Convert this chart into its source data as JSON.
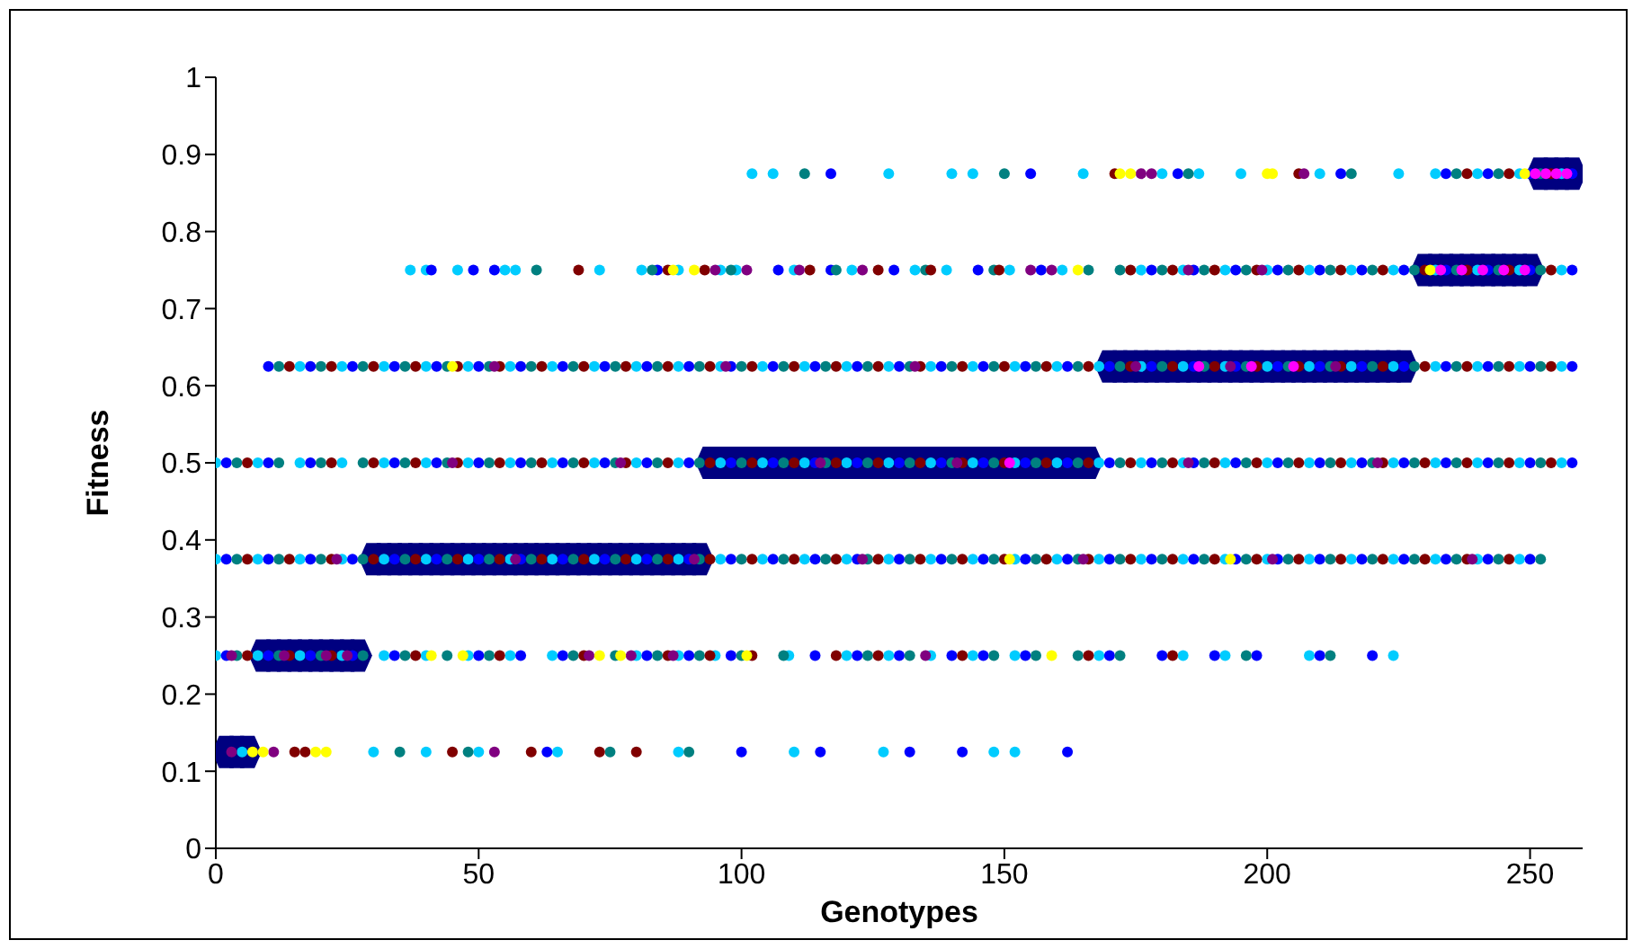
{
  "chart_data": {
    "type": "scatter",
    "xlabel": "Genotypes",
    "ylabel": "Fitness",
    "xlim": [
      0,
      260
    ],
    "xticks": [
      0,
      50,
      100,
      150,
      200,
      250
    ],
    "ylim": [
      0,
      1
    ],
    "yticks": [
      0,
      0.1,
      0.2,
      0.3,
      0.4,
      0.5,
      0.6,
      0.7,
      0.8,
      0.9,
      1
    ],
    "grid": false,
    "legend": false,
    "marker": "circle",
    "series": [
      {
        "color": "#000080",
        "marker": "square",
        "x": [
          2,
          4,
          6,
          9,
          11,
          13,
          15,
          17,
          19,
          21,
          23,
          25,
          27,
          30,
          32,
          34,
          36,
          38,
          40,
          42,
          44,
          46,
          48,
          50,
          52,
          54,
          56,
          58,
          60,
          62,
          64,
          66,
          68,
          70,
          72,
          74,
          76,
          78,
          80,
          82,
          84,
          86,
          88,
          90,
          92,
          94,
          96,
          98,
          100,
          102,
          104,
          106,
          108,
          110,
          112,
          114,
          116,
          118,
          120,
          122,
          124,
          126,
          128,
          130,
          132,
          134,
          136,
          138,
          140,
          142,
          144,
          146,
          148,
          150,
          152,
          154,
          156,
          158,
          160,
          162,
          164,
          166,
          170,
          172,
          174,
          176,
          178,
          180,
          182,
          184,
          186,
          188,
          190,
          192,
          194,
          196,
          198,
          200,
          202,
          204,
          206,
          208,
          210,
          212,
          214,
          216,
          218,
          220,
          222,
          224,
          226,
          230,
          232,
          234,
          236,
          238,
          240,
          242,
          244,
          246,
          248,
          250,
          252,
          254,
          256,
          258
        ],
        "values": [
          0.125,
          0.125,
          0.125,
          0.25,
          0.25,
          0.25,
          0.25,
          0.25,
          0.25,
          0.25,
          0.25,
          0.25,
          0.25,
          0.375,
          0.375,
          0.375,
          0.375,
          0.375,
          0.375,
          0.375,
          0.375,
          0.375,
          0.375,
          0.375,
          0.375,
          0.375,
          0.375,
          0.375,
          0.375,
          0.375,
          0.375,
          0.375,
          0.375,
          0.375,
          0.375,
          0.375,
          0.375,
          0.375,
          0.375,
          0.375,
          0.375,
          0.375,
          0.375,
          0.375,
          0.375,
          0.5,
          0.5,
          0.5,
          0.5,
          0.5,
          0.5,
          0.5,
          0.5,
          0.5,
          0.5,
          0.5,
          0.5,
          0.5,
          0.5,
          0.5,
          0.5,
          0.5,
          0.5,
          0.5,
          0.5,
          0.5,
          0.5,
          0.5,
          0.5,
          0.5,
          0.5,
          0.5,
          0.5,
          0.5,
          0.5,
          0.5,
          0.5,
          0.5,
          0.5,
          0.5,
          0.5,
          0.5,
          0.625,
          0.625,
          0.625,
          0.625,
          0.625,
          0.625,
          0.625,
          0.625,
          0.625,
          0.625,
          0.625,
          0.625,
          0.625,
          0.625,
          0.625,
          0.625,
          0.625,
          0.625,
          0.625,
          0.625,
          0.625,
          0.625,
          0.625,
          0.625,
          0.625,
          0.625,
          0.625,
          0.625,
          0.625,
          0.75,
          0.75,
          0.75,
          0.75,
          0.75,
          0.75,
          0.75,
          0.75,
          0.75,
          0.75,
          0.75,
          0.875,
          0.875,
          0.875,
          0.875
        ]
      },
      {
        "color": "#00ccff",
        "x": [
          0,
          8,
          16,
          24,
          32,
          40,
          48,
          56,
          64,
          72,
          80,
          88,
          96,
          104,
          112,
          120,
          128,
          136,
          144,
          152,
          160,
          168,
          176,
          184,
          192,
          200,
          208,
          216,
          224,
          232,
          240,
          248,
          256,
          0,
          8,
          16,
          24,
          32,
          40,
          48,
          56,
          64,
          72,
          80,
          88,
          96,
          104,
          112,
          120,
          128,
          136,
          144,
          152,
          160,
          168,
          176,
          184,
          192,
          200,
          208,
          216,
          224,
          232,
          240,
          248,
          16,
          24,
          32,
          40,
          48,
          56,
          64,
          72,
          80,
          88,
          96,
          104,
          112,
          120,
          128,
          136,
          144,
          152,
          160,
          168,
          176,
          184,
          192,
          200,
          208,
          216,
          224,
          232,
          240,
          248,
          256,
          37,
          40,
          46,
          55,
          57,
          73,
          81,
          88,
          96,
          99,
          110,
          121,
          133,
          139,
          151,
          161,
          176,
          184,
          192,
          200,
          208,
          216,
          224,
          232,
          240,
          248,
          256,
          102,
          106,
          128,
          140,
          144,
          165,
          180,
          187,
          195,
          210,
          225,
          232,
          240,
          248,
          256,
          0,
          8,
          16,
          24,
          32,
          40,
          48,
          56,
          64,
          80,
          88,
          95,
          109,
          120,
          128,
          136,
          144,
          152,
          168,
          184,
          192,
          208,
          224,
          5,
          30,
          40,
          50,
          65,
          88,
          110,
          127,
          148,
          152
        ],
        "values": [
          0.5,
          0.5,
          0.5,
          0.5,
          0.5,
          0.5,
          0.5,
          0.5,
          0.5,
          0.5,
          0.5,
          0.5,
          0.5,
          0.5,
          0.5,
          0.5,
          0.5,
          0.5,
          0.5,
          0.5,
          0.5,
          0.5,
          0.5,
          0.5,
          0.5,
          0.5,
          0.5,
          0.5,
          0.5,
          0.5,
          0.5,
          0.5,
          0.5,
          0.375,
          0.375,
          0.375,
          0.375,
          0.375,
          0.375,
          0.375,
          0.375,
          0.375,
          0.375,
          0.375,
          0.375,
          0.375,
          0.375,
          0.375,
          0.375,
          0.375,
          0.375,
          0.375,
          0.375,
          0.375,
          0.375,
          0.375,
          0.375,
          0.375,
          0.375,
          0.375,
          0.375,
          0.375,
          0.375,
          0.375,
          0.375,
          0.625,
          0.625,
          0.625,
          0.625,
          0.625,
          0.625,
          0.625,
          0.625,
          0.625,
          0.625,
          0.625,
          0.625,
          0.625,
          0.625,
          0.625,
          0.625,
          0.625,
          0.625,
          0.625,
          0.625,
          0.625,
          0.625,
          0.625,
          0.625,
          0.625,
          0.625,
          0.625,
          0.625,
          0.625,
          0.625,
          0.625,
          0.75,
          0.75,
          0.75,
          0.75,
          0.75,
          0.75,
          0.75,
          0.75,
          0.75,
          0.75,
          0.75,
          0.75,
          0.75,
          0.75,
          0.75,
          0.75,
          0.75,
          0.75,
          0.75,
          0.75,
          0.75,
          0.75,
          0.75,
          0.75,
          0.75,
          0.75,
          0.75,
          0.875,
          0.875,
          0.875,
          0.875,
          0.875,
          0.875,
          0.875,
          0.875,
          0.875,
          0.875,
          0.875,
          0.875,
          0.875,
          0.875,
          0.875,
          0.25,
          0.25,
          0.25,
          0.25,
          0.25,
          0.25,
          0.25,
          0.25,
          0.25,
          0.25,
          0.25,
          0.25,
          0.25,
          0.25,
          0.25,
          0.25,
          0.25,
          0.25,
          0.25,
          0.25,
          0.25,
          0.25,
          0.25,
          0.125,
          0.125,
          0.125,
          0.125,
          0.125,
          0.125,
          0.125,
          0.125,
          0.125,
          0.125
        ]
      },
      {
        "color": "#0000ff",
        "x": [
          2,
          10,
          18,
          34,
          42,
          50,
          58,
          66,
          74,
          82,
          90,
          98,
          106,
          114,
          122,
          130,
          138,
          146,
          154,
          162,
          170,
          178,
          186,
          194,
          202,
          210,
          218,
          226,
          234,
          242,
          250,
          258,
          2,
          10,
          18,
          26,
          34,
          42,
          50,
          58,
          66,
          74,
          82,
          90,
          98,
          106,
          114,
          122,
          130,
          138,
          146,
          154,
          162,
          170,
          178,
          186,
          194,
          202,
          210,
          218,
          226,
          234,
          242,
          250,
          10,
          18,
          26,
          34,
          42,
          50,
          58,
          66,
          74,
          82,
          90,
          98,
          106,
          114,
          122,
          130,
          138,
          146,
          154,
          162,
          170,
          178,
          186,
          194,
          202,
          210,
          218,
          226,
          234,
          242,
          250,
          258,
          178,
          186,
          194,
          202,
          210,
          218,
          226,
          234,
          242,
          250,
          258,
          41,
          49,
          53,
          84,
          107,
          117,
          129,
          145,
          157,
          234,
          242,
          250,
          258,
          117,
          155,
          183,
          214,
          2,
          10,
          18,
          26,
          34,
          50,
          58,
          66,
          82,
          90,
          98,
          114,
          122,
          130,
          140,
          146,
          154,
          170,
          180,
          190,
          198,
          210,
          220,
          63,
          100,
          115,
          132,
          142,
          162
        ],
        "values": [
          0.5,
          0.5,
          0.5,
          0.5,
          0.5,
          0.5,
          0.5,
          0.5,
          0.5,
          0.5,
          0.5,
          0.5,
          0.5,
          0.5,
          0.5,
          0.5,
          0.5,
          0.5,
          0.5,
          0.5,
          0.5,
          0.5,
          0.5,
          0.5,
          0.5,
          0.5,
          0.5,
          0.5,
          0.5,
          0.5,
          0.5,
          0.5,
          0.375,
          0.375,
          0.375,
          0.375,
          0.375,
          0.375,
          0.375,
          0.375,
          0.375,
          0.375,
          0.375,
          0.375,
          0.375,
          0.375,
          0.375,
          0.375,
          0.375,
          0.375,
          0.375,
          0.375,
          0.375,
          0.375,
          0.375,
          0.375,
          0.375,
          0.375,
          0.375,
          0.375,
          0.375,
          0.375,
          0.375,
          0.375,
          0.625,
          0.625,
          0.625,
          0.625,
          0.625,
          0.625,
          0.625,
          0.625,
          0.625,
          0.625,
          0.625,
          0.625,
          0.625,
          0.625,
          0.625,
          0.625,
          0.625,
          0.625,
          0.625,
          0.625,
          0.625,
          0.625,
          0.625,
          0.625,
          0.625,
          0.625,
          0.625,
          0.625,
          0.625,
          0.625,
          0.625,
          0.625,
          0.75,
          0.75,
          0.75,
          0.75,
          0.75,
          0.75,
          0.75,
          0.75,
          0.75,
          0.75,
          0.75,
          0.75,
          0.75,
          0.75,
          0.75,
          0.75,
          0.75,
          0.75,
          0.75,
          0.75,
          0.875,
          0.875,
          0.875,
          0.875,
          0.875,
          0.875,
          0.875,
          0.875,
          0.25,
          0.25,
          0.25,
          0.25,
          0.25,
          0.25,
          0.25,
          0.25,
          0.25,
          0.25,
          0.25,
          0.25,
          0.25,
          0.25,
          0.25,
          0.25,
          0.25,
          0.25,
          0.25,
          0.25,
          0.25,
          0.25,
          0.25,
          0.125,
          0.125,
          0.125,
          0.125,
          0.125,
          0.125
        ]
      },
      {
        "color": "#008080",
        "x": [
          4,
          12,
          20,
          28,
          36,
          44,
          52,
          60,
          68,
          76,
          84,
          92,
          100,
          108,
          116,
          124,
          132,
          140,
          148,
          156,
          164,
          172,
          180,
          188,
          196,
          204,
          212,
          220,
          228,
          236,
          244,
          252,
          4,
          12,
          20,
          28,
          36,
          44,
          52,
          60,
          68,
          76,
          84,
          92,
          100,
          108,
          116,
          124,
          132,
          140,
          148,
          156,
          164,
          172,
          180,
          188,
          196,
          204,
          212,
          220,
          228,
          236,
          244,
          252,
          12,
          20,
          28,
          36,
          44,
          52,
          60,
          68,
          76,
          84,
          92,
          100,
          108,
          116,
          124,
          132,
          140,
          148,
          156,
          164,
          172,
          180,
          188,
          196,
          204,
          212,
          220,
          228,
          236,
          244,
          252,
          172,
          180,
          188,
          196,
          204,
          212,
          220,
          228,
          236,
          244,
          252,
          61,
          83,
          98,
          118,
          135,
          148,
          166,
          236,
          244,
          252,
          112,
          150,
          185,
          216,
          4,
          12,
          20,
          28,
          36,
          44,
          52,
          68,
          76,
          84,
          92,
          100,
          108,
          124,
          132,
          148,
          156,
          164,
          172,
          196,
          212,
          35,
          48,
          75,
          90
        ],
        "values": [
          0.5,
          0.5,
          0.5,
          0.5,
          0.5,
          0.5,
          0.5,
          0.5,
          0.5,
          0.5,
          0.5,
          0.5,
          0.5,
          0.5,
          0.5,
          0.5,
          0.5,
          0.5,
          0.5,
          0.5,
          0.5,
          0.5,
          0.5,
          0.5,
          0.5,
          0.5,
          0.5,
          0.5,
          0.5,
          0.5,
          0.5,
          0.5,
          0.375,
          0.375,
          0.375,
          0.375,
          0.375,
          0.375,
          0.375,
          0.375,
          0.375,
          0.375,
          0.375,
          0.375,
          0.375,
          0.375,
          0.375,
          0.375,
          0.375,
          0.375,
          0.375,
          0.375,
          0.375,
          0.375,
          0.375,
          0.375,
          0.375,
          0.375,
          0.375,
          0.375,
          0.375,
          0.375,
          0.375,
          0.375,
          0.625,
          0.625,
          0.625,
          0.625,
          0.625,
          0.625,
          0.625,
          0.625,
          0.625,
          0.625,
          0.625,
          0.625,
          0.625,
          0.625,
          0.625,
          0.625,
          0.625,
          0.625,
          0.625,
          0.625,
          0.625,
          0.625,
          0.625,
          0.625,
          0.625,
          0.625,
          0.625,
          0.625,
          0.625,
          0.625,
          0.625,
          0.75,
          0.75,
          0.75,
          0.75,
          0.75,
          0.75,
          0.75,
          0.75,
          0.75,
          0.75,
          0.75,
          0.75,
          0.75,
          0.75,
          0.75,
          0.75,
          0.75,
          0.75,
          0.875,
          0.875,
          0.875,
          0.875,
          0.875,
          0.875,
          0.875,
          0.25,
          0.25,
          0.25,
          0.25,
          0.25,
          0.25,
          0.25,
          0.25,
          0.25,
          0.25,
          0.25,
          0.25,
          0.25,
          0.25,
          0.25,
          0.25,
          0.25,
          0.25,
          0.25,
          0.25,
          0.25,
          0.125,
          0.125,
          0.125,
          0.125
        ]
      },
      {
        "color": "#800000",
        "x": [
          6,
          22,
          30,
          38,
          46,
          54,
          62,
          70,
          78,
          86,
          94,
          102,
          110,
          118,
          126,
          134,
          142,
          150,
          158,
          166,
          174,
          182,
          190,
          198,
          206,
          214,
          222,
          230,
          238,
          246,
          254,
          6,
          14,
          22,
          30,
          38,
          46,
          54,
          62,
          70,
          78,
          86,
          94,
          102,
          110,
          118,
          126,
          134,
          142,
          150,
          158,
          166,
          174,
          182,
          190,
          198,
          206,
          214,
          222,
          230,
          238,
          246,
          14,
          22,
          30,
          38,
          46,
          54,
          62,
          70,
          78,
          86,
          94,
          102,
          110,
          118,
          126,
          134,
          142,
          150,
          158,
          166,
          174,
          182,
          190,
          198,
          206,
          214,
          222,
          230,
          238,
          246,
          254,
          174,
          182,
          190,
          198,
          206,
          214,
          222,
          230,
          238,
          246,
          254,
          69,
          86,
          93,
          113,
          126,
          136,
          149,
          238,
          246,
          254,
          171,
          206,
          6,
          14,
          22,
          38,
          54,
          70,
          86,
          94,
          102,
          118,
          126,
          142,
          166,
          182,
          15,
          17,
          45,
          60,
          73,
          80
        ],
        "values": [
          0.5,
          0.5,
          0.5,
          0.5,
          0.5,
          0.5,
          0.5,
          0.5,
          0.5,
          0.5,
          0.5,
          0.5,
          0.5,
          0.5,
          0.5,
          0.5,
          0.5,
          0.5,
          0.5,
          0.5,
          0.5,
          0.5,
          0.5,
          0.5,
          0.5,
          0.5,
          0.5,
          0.5,
          0.5,
          0.5,
          0.5,
          0.375,
          0.375,
          0.375,
          0.375,
          0.375,
          0.375,
          0.375,
          0.375,
          0.375,
          0.375,
          0.375,
          0.375,
          0.375,
          0.375,
          0.375,
          0.375,
          0.375,
          0.375,
          0.375,
          0.375,
          0.375,
          0.375,
          0.375,
          0.375,
          0.375,
          0.375,
          0.375,
          0.375,
          0.375,
          0.375,
          0.375,
          0.625,
          0.625,
          0.625,
          0.625,
          0.625,
          0.625,
          0.625,
          0.625,
          0.625,
          0.625,
          0.625,
          0.625,
          0.625,
          0.625,
          0.625,
          0.625,
          0.625,
          0.625,
          0.625,
          0.625,
          0.625,
          0.625,
          0.625,
          0.625,
          0.625,
          0.625,
          0.625,
          0.625,
          0.625,
          0.625,
          0.625,
          0.75,
          0.75,
          0.75,
          0.75,
          0.75,
          0.75,
          0.75,
          0.75,
          0.75,
          0.75,
          0.75,
          0.75,
          0.75,
          0.75,
          0.75,
          0.75,
          0.75,
          0.75,
          0.875,
          0.875,
          0.875,
          0.875,
          0.875,
          0.25,
          0.25,
          0.25,
          0.25,
          0.25,
          0.25,
          0.25,
          0.25,
          0.25,
          0.25,
          0.25,
          0.25,
          0.25,
          0.25,
          0.125,
          0.125,
          0.125,
          0.125,
          0.125,
          0.125
        ]
      },
      {
        "color": "#800080",
        "x": [
          45,
          77,
          115,
          141,
          185,
          221,
          23,
          57,
          91,
          123,
          165,
          201,
          239,
          53,
          97,
          133,
          175,
          193,
          213,
          3,
          13,
          21,
          25,
          71,
          79,
          87,
          135,
          3,
          11,
          53,
          95,
          101,
          111,
          123,
          155,
          159,
          185,
          199,
          176,
          178,
          207
        ],
        "values": [
          0.5,
          0.5,
          0.5,
          0.5,
          0.5,
          0.5,
          0.375,
          0.375,
          0.375,
          0.375,
          0.375,
          0.375,
          0.375,
          0.625,
          0.625,
          0.625,
          0.625,
          0.625,
          0.625,
          0.25,
          0.25,
          0.25,
          0.25,
          0.25,
          0.25,
          0.25,
          0.25,
          0.125,
          0.125,
          0.125,
          0.75,
          0.75,
          0.75,
          0.75,
          0.75,
          0.75,
          0.75,
          0.75,
          0.875,
          0.875,
          0.875
        ]
      },
      {
        "color": "#ffff00",
        "x": [
          7,
          9,
          19,
          21,
          41,
          47,
          73,
          77,
          101,
          159,
          151,
          193,
          87,
          91,
          164,
          231,
          172,
          174,
          200,
          201,
          249,
          45
        ],
        "values": [
          0.125,
          0.125,
          0.125,
          0.125,
          0.25,
          0.25,
          0.25,
          0.25,
          0.25,
          0.25,
          0.375,
          0.375,
          0.75,
          0.75,
          0.75,
          0.75,
          0.875,
          0.875,
          0.875,
          0.875,
          0.875,
          0.625
        ]
      },
      {
        "color": "#ff00ff",
        "x": [
          251,
          253,
          255,
          257,
          233,
          237,
          241,
          245,
          249,
          187,
          197,
          205,
          151
        ],
        "values": [
          0.875,
          0.875,
          0.875,
          0.875,
          0.75,
          0.75,
          0.75,
          0.75,
          0.75,
          0.625,
          0.625,
          0.625,
          0.5
        ]
      }
    ]
  }
}
